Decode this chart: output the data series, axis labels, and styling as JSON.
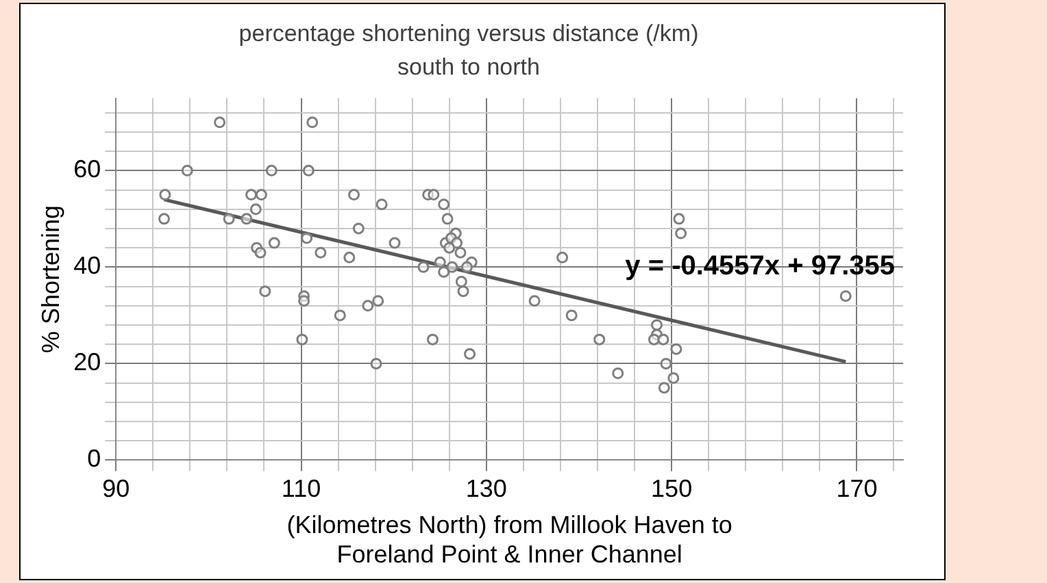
{
  "chart_data": {
    "type": "scatter",
    "title": "percentage shortening versus distance (/km)",
    "subtitle": "south to north",
    "xlabel": "(Kilometres North) from Millook Haven to Foreland Point & Inner Channel",
    "ylabel": "% Shortening",
    "xlim": [
      90,
      175
    ],
    "xticks": [
      90,
      {
        "value": 94,
        "label": null
      },
      {
        "value": 98,
        "label": null
      },
      {
        "value": 102,
        "label": null
      },
      {
        "value": 106,
        "label": null
      },
      110,
      {
        "value": 114,
        "label": null
      },
      {
        "value": 118,
        "label": null
      },
      {
        "value": 122,
        "label": null
      },
      {
        "value": 126,
        "label": null
      },
      130,
      {
        "value": 134,
        "label": null
      },
      {
        "value": 138,
        "label": null
      },
      {
        "value": 142,
        "label": null
      },
      {
        "value": 146,
        "label": null
      },
      150,
      {
        "value": 154,
        "label": null
      },
      {
        "value": 158,
        "label": null
      },
      {
        "value": 162,
        "label": null
      },
      {
        "value": 166,
        "label": null
      },
      170,
      {
        "value": 174,
        "label": null
      }
    ],
    "ylim": [
      0,
      75
    ],
    "yticks": [
      0,
      {
        "value": 4,
        "label": null
      },
      {
        "value": 8,
        "label": null
      },
      {
        "value": 12,
        "label": null
      },
      {
        "value": 16,
        "label": null
      },
      20,
      {
        "value": 24,
        "label": null
      },
      {
        "value": 28,
        "label": null
      },
      {
        "value": 32,
        "label": null
      },
      {
        "value": 36,
        "label": null
      },
      40,
      {
        "value": 44,
        "label": null
      },
      {
        "value": 48,
        "label": null
      },
      {
        "value": 52,
        "label": null
      },
      {
        "value": 56,
        "label": null
      },
      60,
      {
        "value": 64,
        "label": null
      },
      {
        "value": 68,
        "label": null
      },
      {
        "value": 72,
        "label": null
      }
    ],
    "grid": true,
    "marker": "circle",
    "annotations": [
      "y = -0.4557x + 97.355"
    ],
    "series": [
      {
        "type": "scatter",
        "color": "#7f7f7f",
        "x": [
          95.3,
          95.2,
          97.7,
          101.2,
          102.2,
          104.1,
          104.6,
          105.7,
          105.1,
          105.2,
          105.6,
          106.8,
          107.1,
          106.1,
          111.2,
          110.8,
          110.6,
          110.3,
          110.3,
          110.1,
          112.1,
          114.2,
          115.2,
          115.7,
          116.2,
          118.7,
          117.2,
          118.3,
          118.1,
          120.1,
          123.7,
          124.3,
          125.4,
          125.8,
          126.7,
          125.6,
          126.2,
          126.8,
          127.2,
          126.0,
          123.2,
          125.0,
          125.4,
          126.3,
          128.4,
          127.9,
          127.3,
          127.5,
          124.2,
          128.2,
          138.2,
          135.2,
          139.2,
          142.2,
          144.2,
          150.8,
          151.0,
          148.4,
          148.4,
          148.1,
          149.1,
          150.5,
          149.4,
          150.2,
          149.2,
          168.8
        ],
        "values": [
          55,
          50,
          60,
          70,
          50,
          50,
          55,
          55,
          52,
          44,
          43,
          60,
          45,
          35,
          70,
          60,
          46,
          34,
          33,
          25,
          43,
          30,
          42,
          55,
          48,
          53,
          32,
          33,
          20,
          45,
          55,
          55,
          53,
          50,
          47,
          45,
          46,
          45,
          43,
          44,
          40,
          41,
          39,
          40,
          41,
          40,
          37,
          35,
          25,
          22,
          42,
          33,
          30,
          25,
          18,
          50,
          47,
          28,
          26,
          25,
          25,
          23,
          20,
          17,
          15,
          34
        ]
      },
      {
        "type": "line",
        "color": "#595959",
        "marker": "none",
        "x": [
          95.2,
          168.8
        ],
        "values": [
          54.0,
          20.4
        ]
      }
    ]
  }
}
